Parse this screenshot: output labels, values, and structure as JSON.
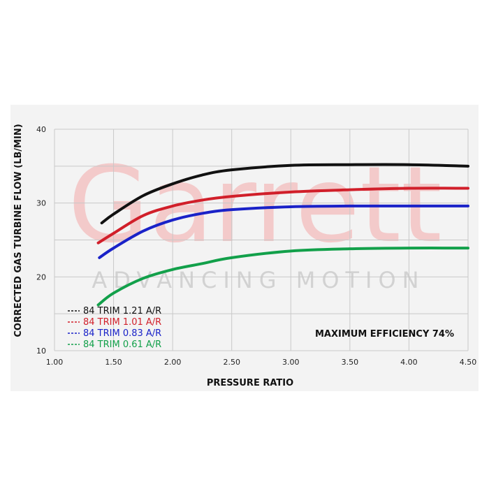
{
  "watermark": {
    "brand": "Garrett",
    "tagline": "ADVANCING MOTION"
  },
  "chart_data": {
    "type": "line",
    "title": "",
    "xlabel": "PRESSURE RATIO",
    "ylabel": "CORRECTED GAS TURBINE FLOW (LB/MIN)",
    "xlim": [
      1.0,
      4.5
    ],
    "ylim": [
      10,
      40
    ],
    "xticks": [
      "1.00",
      "1.50",
      "2.00",
      "2.50",
      "3.00",
      "3.50",
      "4.00",
      "4.50"
    ],
    "yticks": [
      "10",
      "20",
      "30",
      "40"
    ],
    "grid": true,
    "legend_position": "bottom-left",
    "annotation": "MAXIMUM EFFICIENCY 74%",
    "series": [
      {
        "name": "84 TRIM 1.21 A/R",
        "color": "#111111",
        "x": [
          1.4,
          1.5,
          1.75,
          2.0,
          2.25,
          2.5,
          3.0,
          3.5,
          4.0,
          4.5
        ],
        "y": [
          27.3,
          28.5,
          31.0,
          32.6,
          33.8,
          34.5,
          35.1,
          35.2,
          35.2,
          35.0
        ]
      },
      {
        "name": "84 TRIM 1.01 A/R",
        "color": "#d11f2a",
        "x": [
          1.37,
          1.5,
          1.75,
          2.0,
          2.25,
          2.5,
          3.0,
          3.5,
          4.0,
          4.5
        ],
        "y": [
          24.6,
          25.9,
          28.3,
          29.6,
          30.4,
          30.9,
          31.5,
          31.8,
          32.0,
          32.0
        ]
      },
      {
        "name": "84 TRIM 0.83 A/R",
        "color": "#1a22c8",
        "x": [
          1.38,
          1.5,
          1.75,
          2.0,
          2.25,
          2.5,
          3.0,
          3.5,
          4.0,
          4.5
        ],
        "y": [
          22.6,
          23.9,
          26.2,
          27.7,
          28.6,
          29.1,
          29.5,
          29.6,
          29.6,
          29.6
        ]
      },
      {
        "name": "84 TRIM 0.61 A/R",
        "color": "#12a04a",
        "x": [
          1.37,
          1.5,
          1.75,
          2.0,
          2.25,
          2.5,
          3.0,
          3.5,
          4.0,
          4.5
        ],
        "y": [
          16.2,
          17.8,
          19.8,
          21.0,
          21.8,
          22.6,
          23.5,
          23.8,
          23.9,
          23.9
        ]
      }
    ]
  }
}
